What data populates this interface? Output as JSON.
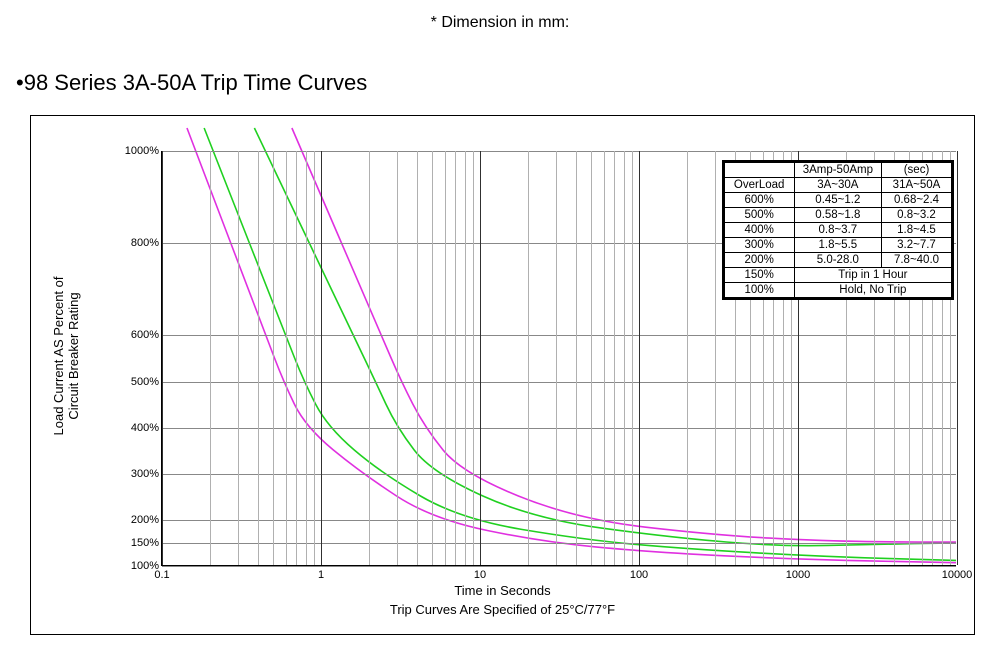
{
  "dimension_note": "* Dimension in mm:",
  "title": "•98 Series 3A-50A Trip Time Curves",
  "y_axis_label": "Load Current AS Percent of\nCircuit Breaker Rating",
  "x_axis_label": "Time in Seconds",
  "x_axis_sublabel": "Trip Curves Are Specified of 25°C/77°F",
  "chart": {
    "type": "line",
    "x_scale": "log",
    "y_scale": "linear",
    "xlim": [
      0.1,
      10000
    ],
    "ylim": [
      100,
      1000
    ],
    "y_ticks": [
      100,
      150,
      200,
      300,
      400,
      500,
      600,
      800,
      1000
    ],
    "y_tick_labels": [
      "100%",
      "150%",
      "200%",
      "300%",
      "400%",
      "500%",
      "600%",
      "800%",
      "1000%"
    ],
    "x_ticks": [
      0.1,
      1,
      10,
      100,
      1000,
      10000
    ],
    "x_tick_labels": [
      "0.1",
      "1",
      "10",
      "100",
      "1000",
      "10000"
    ],
    "background_color": "#ffffff",
    "grid_major_color": "#303030",
    "grid_minor_color": "#b0b0b0",
    "axis_color": "#000000",
    "curve_colors": {
      "magenta": "#e030e0",
      "green": "#20d020"
    },
    "curves": [
      {
        "color": "#e030e0",
        "points": [
          [
            0.45,
            600
          ],
          [
            0.58,
            500
          ],
          [
            0.8,
            400
          ],
          [
            1.8,
            300
          ],
          [
            5.0,
            200
          ],
          [
            25,
            150
          ],
          [
            120,
            128
          ],
          [
            1000,
            112
          ],
          [
            10000,
            105
          ]
        ]
      },
      {
        "color": "#20d020",
        "points": [
          [
            0.6,
            600
          ],
          [
            0.78,
            500
          ],
          [
            1.1,
            400
          ],
          [
            2.4,
            300
          ],
          [
            7.5,
            200
          ],
          [
            45,
            155
          ],
          [
            200,
            135
          ],
          [
            1500,
            118
          ],
          [
            10000,
            110
          ]
        ]
      },
      {
        "color": "#20d020",
        "points": [
          [
            1.6,
            600
          ],
          [
            2.2,
            500
          ],
          [
            3.0,
            400
          ],
          [
            5.0,
            300
          ],
          [
            22,
            200
          ],
          [
            160,
            160
          ],
          [
            800,
            140
          ],
          [
            3000,
            145
          ],
          [
            10000,
            148
          ]
        ]
      },
      {
        "color": "#e030e0",
        "points": [
          [
            2.4,
            600
          ],
          [
            3.2,
            500
          ],
          [
            4.5,
            400
          ],
          [
            7.7,
            300
          ],
          [
            40,
            200
          ],
          [
            300,
            165
          ],
          [
            1500,
            152
          ],
          [
            5000,
            150
          ],
          [
            10000,
            150
          ]
        ]
      }
    ]
  },
  "table": {
    "header_title": "3Amp-50Amp",
    "header_unit": "(sec)",
    "columns": [
      "OverLoad",
      "3A~30A",
      "31A~50A"
    ],
    "rows": [
      [
        "600%",
        "0.45~1.2",
        "0.68~2.4"
      ],
      [
        "500%",
        "0.58~1.8",
        "0.8~3.2"
      ],
      [
        "400%",
        "0.8~3.7",
        "1.8~4.5"
      ],
      [
        "300%",
        "1.8~5.5",
        "3.2~7.7"
      ],
      [
        "200%",
        "5.0-28.0",
        "7.8~40.0"
      ]
    ],
    "merged_rows": [
      [
        "150%",
        "Trip in 1 Hour"
      ],
      [
        "100%",
        "Hold, No Trip"
      ]
    ]
  }
}
